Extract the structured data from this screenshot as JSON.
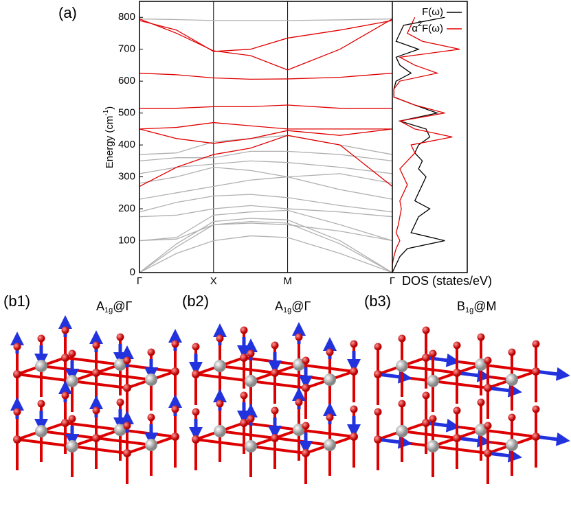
{
  "chart_data": [
    {
      "type": "band",
      "panel_label": "(a)",
      "y_label": {
        "base": "Energy (cm",
        "sup": "-1",
        "end": ")"
      },
      "x": [
        0,
        0.5,
        1,
        1.5,
        2,
        2.707,
        3.414
      ],
      "xlim": [
        0,
        3.414
      ],
      "xticks": [
        {
          "value": 0,
          "label": "Γ"
        },
        {
          "value": 1,
          "label": "X"
        },
        {
          "value": 2,
          "label": "M"
        },
        {
          "value": 3.414,
          "label": "Γ"
        }
      ],
      "ylim": [
        0,
        850
      ],
      "yticks": [
        0,
        100,
        200,
        300,
        400,
        500,
        600,
        700,
        800
      ],
      "series": [
        {
          "color": "#b0b0b0",
          "values": [
            0,
            60,
            100,
            115,
            110,
            60,
            0
          ]
        },
        {
          "color": "#b0b0b0",
          "values": [
            0,
            80,
            150,
            160,
            155,
            90,
            0
          ]
        },
        {
          "color": "#b0b0b0",
          "values": [
            0,
            90,
            160,
            170,
            165,
            100,
            0
          ]
        },
        {
          "color": "#b0b0b0",
          "values": [
            100,
            105,
            150,
            155,
            150,
            130,
            100
          ]
        },
        {
          "color": "#b0b0b0",
          "values": [
            100,
            110,
            180,
            190,
            195,
            150,
            100
          ]
        },
        {
          "color": "#b0b0b0",
          "values": [
            175,
            180,
            200,
            210,
            200,
            190,
            175
          ]
        },
        {
          "color": "#b0b0b0",
          "values": [
            190,
            220,
            240,
            245,
            235,
            210,
            190
          ]
        },
        {
          "color": "#b0b0b0",
          "values": [
            230,
            250,
            270,
            290,
            300,
            260,
            230
          ]
        },
        {
          "color": "#b0b0b0",
          "values": [
            280,
            300,
            330,
            320,
            300,
            310,
            280
          ]
        },
        {
          "color": "#b0b0b0",
          "values": [
            310,
            330,
            340,
            350,
            345,
            330,
            310
          ]
        },
        {
          "color": "#b0b0b0",
          "values": [
            350,
            360,
            360,
            380,
            380,
            370,
            350
          ]
        },
        {
          "color": "#b0b0b0",
          "values": [
            370,
            375,
            410,
            420,
            430,
            400,
            370
          ]
        },
        {
          "color": "#b0b0b0",
          "values": [
            795,
            793,
            790,
            790,
            790,
            792,
            795
          ]
        },
        {
          "color": "#e00000",
          "values": [
            625,
            620,
            610,
            606,
            607,
            612,
            625
          ]
        },
        {
          "color": "#e00000",
          "values": [
            795,
            750,
            695,
            680,
            635,
            700,
            795
          ]
        },
        {
          "color": "#e00000",
          "values": [
            790,
            760,
            693,
            700,
            735,
            760,
            790
          ]
        },
        {
          "color": "#e00000",
          "values": [
            450,
            455,
            470,
            460,
            450,
            450,
            450
          ]
        },
        {
          "color": "#e00000",
          "values": [
            515,
            515,
            520,
            520,
            525,
            515,
            515
          ]
        },
        {
          "color": "#e00000",
          "values": [
            270,
            330,
            370,
            390,
            430,
            400,
            270
          ]
        },
        {
          "color": "#e00000",
          "values": [
            450,
            420,
            405,
            420,
            445,
            430,
            450
          ]
        }
      ]
    },
    {
      "type": "dos",
      "x_label": "DOS (states/eV)",
      "energies": [
        0,
        25,
        50,
        75,
        100,
        125,
        150,
        175,
        200,
        225,
        250,
        275,
        300,
        325,
        350,
        375,
        400,
        425,
        450,
        475,
        500,
        525,
        550,
        575,
        600,
        625,
        650,
        675,
        700,
        725,
        750,
        775,
        800
      ],
      "xlim": [
        0,
        1
      ],
      "series": [
        {
          "name": "F(ω)",
          "color": "#000000",
          "values": [
            0,
            0.05,
            0.1,
            0.2,
            0.7,
            0.25,
            0.3,
            0.35,
            0.5,
            0.3,
            0.35,
            0.4,
            0.45,
            0.35,
            0.4,
            0.3,
            0.35,
            0.5,
            0.45,
            0.1,
            0.6,
            0.3,
            0.02,
            0.02,
            0.05,
            0.25,
            0.1,
            0.05,
            0.35,
            0.05,
            0.1,
            0.15,
            0.7
          ]
        },
        {
          "name": {
            "base": "α",
            "sup": "2",
            "end": "F(ω)"
          },
          "color": "#e00000",
          "values": [
            0,
            0,
            0.02,
            0.05,
            0.1,
            0.05,
            0.08,
            0.1,
            0.12,
            0.1,
            0.15,
            0.2,
            0.15,
            0.1,
            0.2,
            0.3,
            0.25,
            0.8,
            0.3,
            0.1,
            0.7,
            0.3,
            0.02,
            0.02,
            0.1,
            0.6,
            0.3,
            0.1,
            0.9,
            0.4,
            0.2,
            0.25,
            0.3
          ]
        }
      ]
    }
  ],
  "structures": [
    {
      "panel_label": "(b1)",
      "mode": {
        "base": "A",
        "sub": "1g",
        "end": "@Γ"
      }
    },
    {
      "panel_label": "(b2)",
      "mode": {
        "base": "A",
        "sub": "1g",
        "end": "@Γ"
      }
    },
    {
      "panel_label": "(b3)",
      "mode": {
        "base": "B",
        "sub": "1g",
        "end": "@M"
      }
    }
  ]
}
